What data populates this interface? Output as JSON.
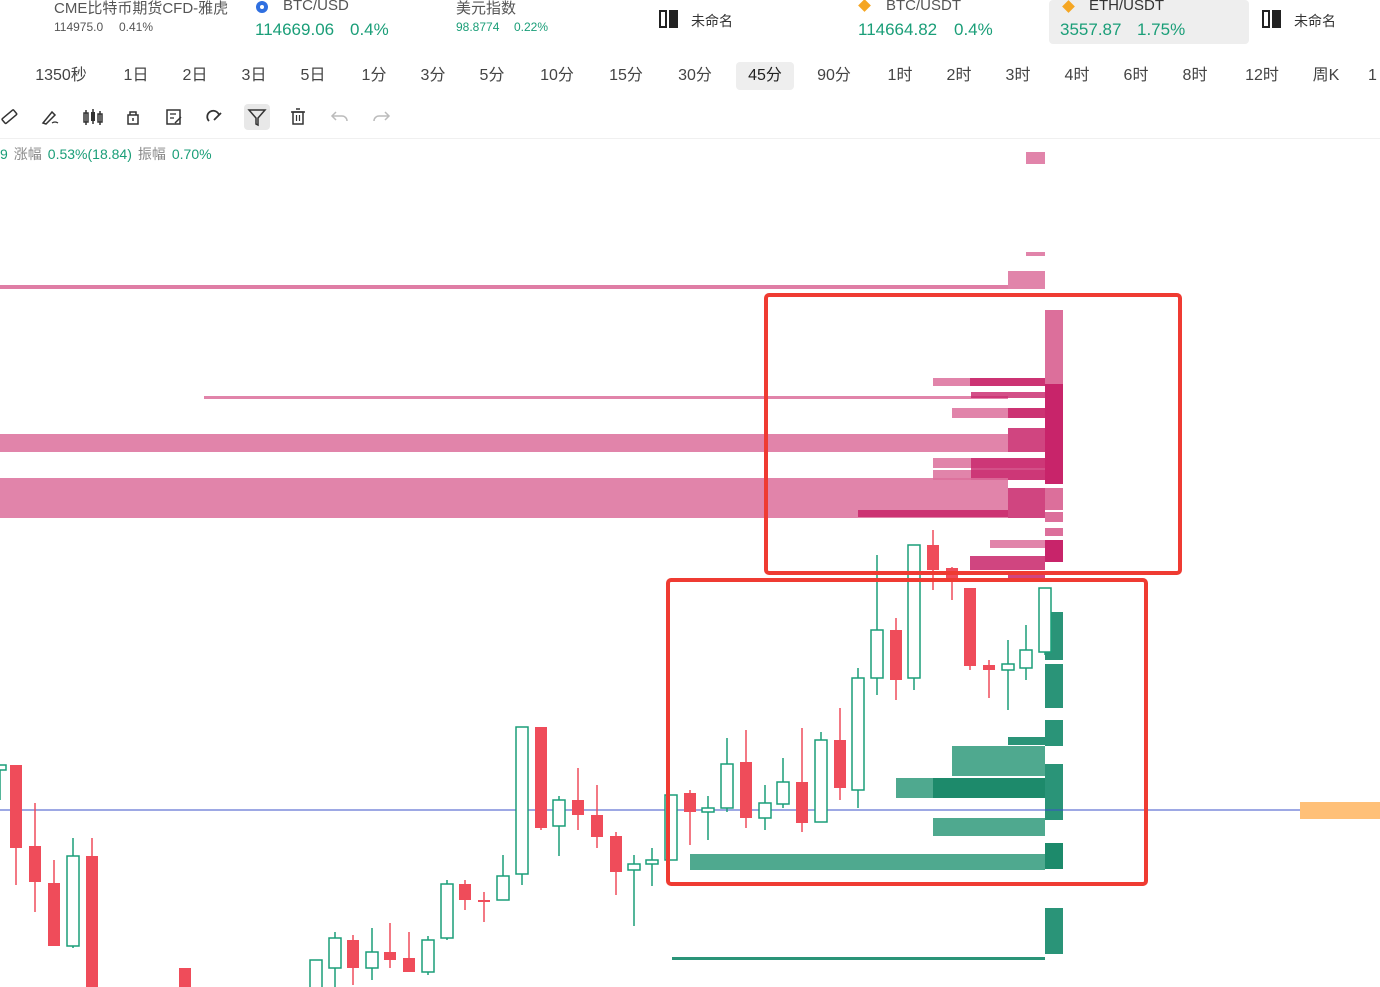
{
  "ticker_bar": {
    "items": [
      {
        "name": "CME比特币期货CFD-雅虎",
        "price": "114975.0",
        "change": "0.41%"
      },
      {
        "name": "BTC/USD",
        "price": "114669.06",
        "change": "0.4%"
      },
      {
        "name": "美元指数",
        "price": "98.8774",
        "change": "0.22%"
      },
      {
        "name": "未命名"
      },
      {
        "name": "BTC/USDT",
        "price": "114664.82",
        "change": "0.4%"
      },
      {
        "name": "ETH/USDT",
        "price": "3557.87",
        "change": "1.75%"
      },
      {
        "name": "未命名"
      }
    ]
  },
  "intervals": {
    "items": [
      "1350秒",
      "1日",
      "2日",
      "3日",
      "5日",
      "1分",
      "3分",
      "5分",
      "10分",
      "15分",
      "30分",
      "45分",
      "90分",
      "1时",
      "2时",
      "3时",
      "4时",
      "6时",
      "8时",
      "12时",
      "周K",
      "1"
    ],
    "active": "45分"
  },
  "tools": {
    "items": [
      "ruler-icon",
      "brush-icon",
      "candle-icon",
      "lock-icon",
      "note-icon",
      "magnet-icon",
      "filter-icon",
      "trash-icon",
      "undo-icon",
      "redo-icon"
    ],
    "active": "filter-icon"
  },
  "info": {
    "prefix": "9",
    "change_label": "涨幅",
    "change_value": "0.53%(18.84)",
    "amp_label": "振幅",
    "amp_value": "0.70%"
  },
  "colors": {
    "up": "#1a9e78",
    "down": "#ef4c5a",
    "ask_volume": "#dc6f9b",
    "bid_volume": "#2a9478",
    "highlight_box": "#ef3b32",
    "price_line": "#3b50c8",
    "price_tag": "#ffc078"
  }
}
